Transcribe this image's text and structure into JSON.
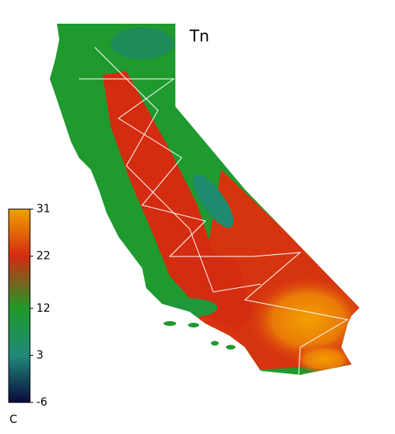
{
  "map": {
    "title": "Tn",
    "colorbar": {
      "range": [
        -6,
        31
      ],
      "ticks": [
        -6,
        3,
        12,
        22,
        31
      ],
      "unit": "C",
      "colors": [
        "#0a0a3c",
        "#1f8a7a",
        "#1e9a2a",
        "#d42a10",
        "#f0a000"
      ]
    }
  }
}
